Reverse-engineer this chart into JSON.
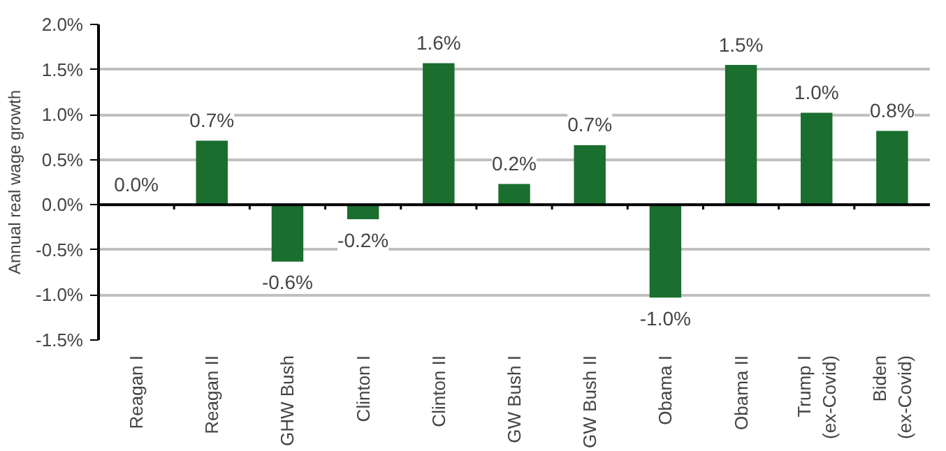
{
  "chart_data": {
    "type": "bar",
    "ylabel": "Annual real wage growth",
    "categories": [
      "Reagan I",
      "Reagan II",
      "GHW Bush",
      "Clinton I",
      "Clinton II",
      "GW Bush I",
      "GW Bush II",
      "Obama I",
      "Obama II",
      "Trump I\n(ex-Covid)",
      "Biden\n(ex-Covid)"
    ],
    "series": [
      {
        "color": "#1a6e2e",
        "values": [
          0.0,
          0.71,
          -0.63,
          -0.16,
          1.57,
          0.23,
          0.66,
          -1.03,
          1.55,
          1.02,
          0.82
        ],
        "value_labels": [
          "0.0%",
          "0.7%",
          "-0.6%",
          "-0.2%",
          "1.6%",
          "0.2%",
          "0.7%",
          "-1.0%",
          "1.5%",
          "1.0%",
          "0.8%"
        ]
      }
    ],
    "ylim": [
      -1.5,
      2.0
    ],
    "yticks": [
      {
        "value": -1.5,
        "label": "-1.5%"
      },
      {
        "value": -1.0,
        "label": "-1.0%"
      },
      {
        "value": -0.5,
        "label": "-0.5%"
      },
      {
        "value": 0.0,
        "label": "0.0%"
      },
      {
        "value": 0.5,
        "label": "0.5%"
      },
      {
        "value": 1.0,
        "label": "1.0%"
      },
      {
        "value": 1.5,
        "label": "1.5%"
      },
      {
        "value": 2.0,
        "label": "2.0%"
      }
    ],
    "grid": "y"
  }
}
